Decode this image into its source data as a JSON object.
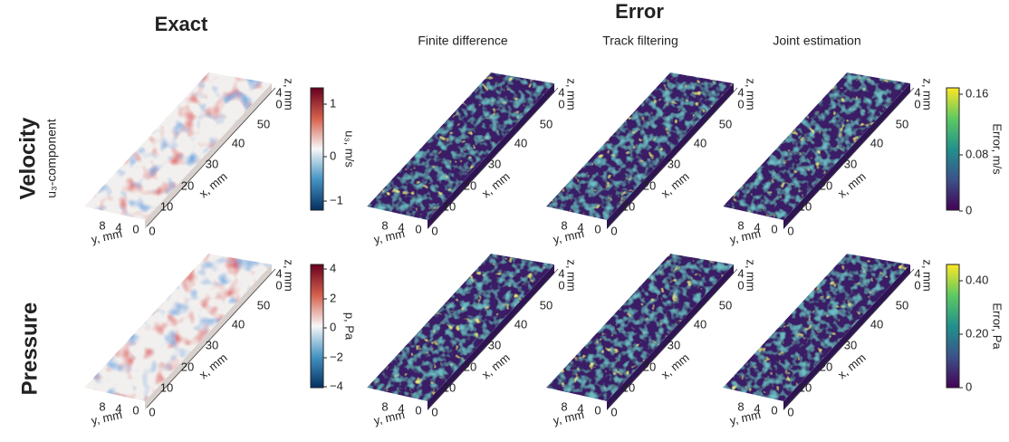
{
  "headers": {
    "exact": "Exact",
    "error": "Error",
    "methods": [
      "Finite difference",
      "Track filtering",
      "Joint estimation"
    ]
  },
  "axes": {
    "x_label": "x, mm",
    "x_ticks": [
      "0",
      "10",
      "20",
      "30",
      "40",
      "50"
    ],
    "y_label": "y, mm",
    "y_ticks": [
      "8",
      "4",
      "0"
    ],
    "z_label": "z, mm",
    "z_ticks": [
      "4",
      "0"
    ]
  },
  "rows": [
    {
      "title": "Velocity",
      "subtitle": "u₃-component",
      "colorbars": [
        {
          "label": "u₃, m/s",
          "ticks": [
            "1",
            "0",
            "−1"
          ]
        },
        {
          "label": "Error, m/s",
          "ticks": [
            "0.16",
            "0.08",
            "0"
          ]
        }
      ]
    },
    {
      "title": "Pressure",
      "colorbars": [
        {
          "label": "p, Pa",
          "ticks": [
            "4",
            "2",
            "0",
            "−2",
            "−4"
          ]
        },
        {
          "label": "Error, Pa",
          "ticks": [
            "0.40",
            "0.20",
            "0"
          ]
        }
      ]
    }
  ]
}
